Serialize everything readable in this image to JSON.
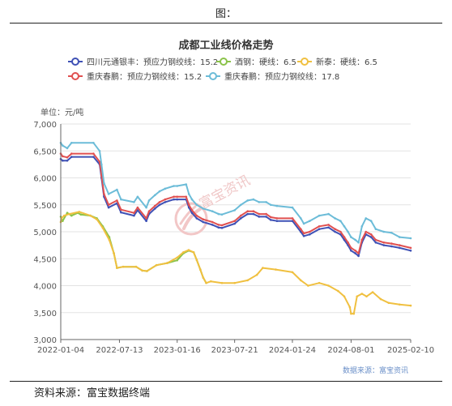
{
  "page": {
    "figure_label": "图：",
    "source_note": "资料来源：富宝数据终端"
  },
  "chart_data": {
    "type": "line",
    "title": "成都工业线价格走势",
    "unit_label": "单位：元/吨",
    "data_source": "数据来源：富宝资讯",
    "watermark": "富宝资讯",
    "ylim": [
      3000,
      7000
    ],
    "yticks": [
      3000,
      3500,
      4000,
      4500,
      5000,
      5500,
      6000,
      6500,
      7000
    ],
    "ytick_labels": [
      "3,000",
      "3,500",
      "4,000",
      "4,500",
      "5,000",
      "5,500",
      "6,000",
      "6,500",
      "7,000"
    ],
    "xlim": [
      "2022-01-04",
      "2025-02-10"
    ],
    "xticks": [
      "2022-01-04",
      "2022-07-13",
      "2023-01-16",
      "2023-07-21",
      "2024-01-24",
      "2024-08-01",
      "2025-02-10"
    ],
    "grid": "horizontal",
    "legend_position": "top",
    "series": [
      {
        "name": "四川元通银丰：预应力钢绞线：15.2",
        "color": "#3f51b5",
        "points": [
          [
            "2022-01-04",
            6350
          ],
          [
            "2022-01-10",
            6320
          ],
          [
            "2022-01-25",
            6320
          ],
          [
            "2022-02-08",
            6390
          ],
          [
            "2022-04-20",
            6390
          ],
          [
            "2022-05-10",
            6250
          ],
          [
            "2022-05-16",
            6000
          ],
          [
            "2022-05-24",
            5650
          ],
          [
            "2022-06-08",
            5450
          ],
          [
            "2022-07-05",
            5530
          ],
          [
            "2022-07-18",
            5360
          ],
          [
            "2022-08-29",
            5300
          ],
          [
            "2022-09-10",
            5400
          ],
          [
            "2022-10-08",
            5200
          ],
          [
            "2022-10-17",
            5330
          ],
          [
            "2022-11-05",
            5430
          ],
          [
            "2022-11-20",
            5500
          ],
          [
            "2022-12-08",
            5550
          ],
          [
            "2023-01-05",
            5600
          ],
          [
            "2023-01-16",
            5600
          ],
          [
            "2023-02-14",
            5600
          ],
          [
            "2023-02-23",
            5450
          ],
          [
            "2023-03-05",
            5350
          ],
          [
            "2023-03-20",
            5250
          ],
          [
            "2023-04-10",
            5180
          ],
          [
            "2023-05-10",
            5130
          ],
          [
            "2023-05-30",
            5080
          ],
          [
            "2023-06-10",
            5070
          ],
          [
            "2023-07-21",
            5150
          ],
          [
            "2023-08-10",
            5250
          ],
          [
            "2023-09-01",
            5330
          ],
          [
            "2023-09-20",
            5330
          ],
          [
            "2023-10-08",
            5280
          ],
          [
            "2023-10-31",
            5280
          ],
          [
            "2023-11-15",
            5220
          ],
          [
            "2023-12-05",
            5200
          ],
          [
            "2024-01-24",
            5200
          ],
          [
            "2024-02-20",
            5000
          ],
          [
            "2024-03-01",
            4920
          ],
          [
            "2024-03-20",
            4950
          ],
          [
            "2024-04-20",
            5050
          ],
          [
            "2024-05-20",
            5080
          ],
          [
            "2024-06-10",
            5000
          ],
          [
            "2024-06-28",
            4950
          ],
          [
            "2024-07-10",
            4850
          ],
          [
            "2024-07-22",
            4750
          ],
          [
            "2024-08-01",
            4650
          ],
          [
            "2024-08-15",
            4600
          ],
          [
            "2024-08-25",
            4550
          ],
          [
            "2024-09-05",
            4800
          ],
          [
            "2024-09-18",
            4950
          ],
          [
            "2024-10-05",
            4900
          ],
          [
            "2024-10-20",
            4800
          ],
          [
            "2024-11-15",
            4750
          ],
          [
            "2024-12-10",
            4730
          ],
          [
            "2025-01-05",
            4700
          ],
          [
            "2025-02-10",
            4650
          ]
        ]
      },
      {
        "name": "酒钢：硬线：6.5",
        "color": "#8bc34a",
        "points": [
          [
            "2022-01-04",
            5280
          ],
          [
            "2022-01-10",
            5200
          ],
          [
            "2022-01-25",
            5350
          ],
          [
            "2022-02-08",
            5300
          ],
          [
            "2022-02-28",
            5350
          ],
          [
            "2022-03-10",
            5320
          ],
          [
            "2022-04-10",
            5300
          ],
          [
            "2022-05-01",
            5250
          ],
          [
            "2022-05-20",
            5100
          ],
          [
            "2022-06-10",
            4900
          ],
          [
            "2022-06-25",
            4600
          ],
          [
            "2022-07-05",
            4330
          ],
          [
            "2022-07-25",
            4350
          ],
          [
            "2022-09-05",
            4350
          ],
          [
            "2022-09-25",
            4280
          ],
          [
            "2022-10-10",
            4270
          ],
          [
            "2022-11-10",
            4380
          ],
          [
            "2022-12-15",
            4420
          ],
          [
            "2023-01-16",
            4470
          ],
          [
            "2023-02-05",
            4600
          ],
          [
            "2023-02-22",
            4650
          ],
          [
            "2023-03-10",
            4620
          ],
          [
            "2023-03-20",
            4480
          ],
          [
            "2023-04-01",
            4300
          ],
          [
            "2023-04-10",
            4150
          ],
          [
            "2023-04-20",
            4050
          ]
        ]
      },
      {
        "name": "新泰：硬线：6.5",
        "color": "#f0c040",
        "points": [
          [
            "2022-01-04",
            5180
          ],
          [
            "2022-01-06",
            5250
          ],
          [
            "2022-01-15",
            5300
          ],
          [
            "2022-02-01",
            5330
          ],
          [
            "2022-03-05",
            5370
          ],
          [
            "2022-04-10",
            5300
          ],
          [
            "2022-05-01",
            5230
          ],
          [
            "2022-05-20",
            5070
          ],
          [
            "2022-06-10",
            4850
          ],
          [
            "2022-06-25",
            4600
          ],
          [
            "2022-07-05",
            4330
          ],
          [
            "2022-07-25",
            4350
          ],
          [
            "2022-09-05",
            4350
          ],
          [
            "2022-09-25",
            4280
          ],
          [
            "2022-10-10",
            4270
          ],
          [
            "2022-11-10",
            4380
          ],
          [
            "2022-12-15",
            4420
          ],
          [
            "2023-01-16",
            4520
          ],
          [
            "2023-02-05",
            4620
          ],
          [
            "2023-02-22",
            4660
          ],
          [
            "2023-03-10",
            4620
          ],
          [
            "2023-03-20",
            4480
          ],
          [
            "2023-04-01",
            4300
          ],
          [
            "2023-04-10",
            4150
          ],
          [
            "2023-04-20",
            4050
          ],
          [
            "2023-05-05",
            4080
          ],
          [
            "2023-06-10",
            4050
          ],
          [
            "2023-07-21",
            4050
          ],
          [
            "2023-09-01",
            4100
          ],
          [
            "2023-10-01",
            4200
          ],
          [
            "2023-10-20",
            4330
          ],
          [
            "2023-12-01",
            4300
          ],
          [
            "2024-01-24",
            4250
          ],
          [
            "2024-02-20",
            4100
          ],
          [
            "2024-03-15",
            4000
          ],
          [
            "2024-04-20",
            4050
          ],
          [
            "2024-05-20",
            4000
          ],
          [
            "2024-06-20",
            3900
          ],
          [
            "2024-07-10",
            3800
          ],
          [
            "2024-07-28",
            3600
          ],
          [
            "2024-08-01",
            3480
          ],
          [
            "2024-08-10",
            3480
          ],
          [
            "2024-08-20",
            3800
          ],
          [
            "2024-09-05",
            3850
          ],
          [
            "2024-09-20",
            3800
          ],
          [
            "2024-10-10",
            3880
          ],
          [
            "2024-11-05",
            3750
          ],
          [
            "2024-12-01",
            3680
          ],
          [
            "2025-01-05",
            3650
          ],
          [
            "2025-02-10",
            3630
          ]
        ]
      },
      {
        "name": "重庆春鹏：预应力钢绞线：15.2",
        "color": "#e05050",
        "points": [
          [
            "2022-01-04",
            6450
          ],
          [
            "2022-01-10",
            6400
          ],
          [
            "2022-01-25",
            6380
          ],
          [
            "2022-02-08",
            6450
          ],
          [
            "2022-04-20",
            6450
          ],
          [
            "2022-05-10",
            6300
          ],
          [
            "2022-05-16",
            6050
          ],
          [
            "2022-05-24",
            5700
          ],
          [
            "2022-06-08",
            5500
          ],
          [
            "2022-07-05",
            5580
          ],
          [
            "2022-07-18",
            5410
          ],
          [
            "2022-08-29",
            5350
          ],
          [
            "2022-09-10",
            5450
          ],
          [
            "2022-10-08",
            5250
          ],
          [
            "2022-10-17",
            5380
          ],
          [
            "2022-11-05",
            5480
          ],
          [
            "2022-11-20",
            5550
          ],
          [
            "2022-12-08",
            5600
          ],
          [
            "2023-01-05",
            5650
          ],
          [
            "2023-01-16",
            5650
          ],
          [
            "2023-02-14",
            5650
          ],
          [
            "2023-02-23",
            5500
          ],
          [
            "2023-03-05",
            5400
          ],
          [
            "2023-03-20",
            5300
          ],
          [
            "2023-04-10",
            5230
          ],
          [
            "2023-05-10",
            5180
          ],
          [
            "2023-05-30",
            5130
          ],
          [
            "2023-06-10",
            5120
          ],
          [
            "2023-07-21",
            5200
          ],
          [
            "2023-08-10",
            5300
          ],
          [
            "2023-09-01",
            5380
          ],
          [
            "2023-09-20",
            5380
          ],
          [
            "2023-10-08",
            5330
          ],
          [
            "2023-10-31",
            5330
          ],
          [
            "2023-11-15",
            5270
          ],
          [
            "2023-12-05",
            5250
          ],
          [
            "2024-01-24",
            5250
          ],
          [
            "2024-02-20",
            5050
          ],
          [
            "2024-03-01",
            4970
          ],
          [
            "2024-03-20",
            5000
          ],
          [
            "2024-04-20",
            5100
          ],
          [
            "2024-05-20",
            5130
          ],
          [
            "2024-06-10",
            5050
          ],
          [
            "2024-06-28",
            5000
          ],
          [
            "2024-07-10",
            4900
          ],
          [
            "2024-07-22",
            4800
          ],
          [
            "2024-08-01",
            4700
          ],
          [
            "2024-08-15",
            4650
          ],
          [
            "2024-08-25",
            4600
          ],
          [
            "2024-09-05",
            4850
          ],
          [
            "2024-09-18",
            5000
          ],
          [
            "2024-10-05",
            4950
          ],
          [
            "2024-10-20",
            4850
          ],
          [
            "2024-11-15",
            4800
          ],
          [
            "2024-12-10",
            4780
          ],
          [
            "2025-01-05",
            4750
          ],
          [
            "2025-02-10",
            4700
          ]
        ]
      },
      {
        "name": "重庆春鹏：预应力钢绞线：17.8",
        "color": "#6cbcd8",
        "points": [
          [
            "2022-01-04",
            6650
          ],
          [
            "2022-01-10",
            6600
          ],
          [
            "2022-01-25",
            6550
          ],
          [
            "2022-02-08",
            6650
          ],
          [
            "2022-04-20",
            6650
          ],
          [
            "2022-05-10",
            6500
          ],
          [
            "2022-05-16",
            6250
          ],
          [
            "2022-05-24",
            5900
          ],
          [
            "2022-06-08",
            5700
          ],
          [
            "2022-07-05",
            5780
          ],
          [
            "2022-07-18",
            5600
          ],
          [
            "2022-08-29",
            5550
          ],
          [
            "2022-09-10",
            5650
          ],
          [
            "2022-10-08",
            5450
          ],
          [
            "2022-10-17",
            5580
          ],
          [
            "2022-11-05",
            5680
          ],
          [
            "2022-11-20",
            5750
          ],
          [
            "2022-12-08",
            5800
          ],
          [
            "2023-01-05",
            5850
          ],
          [
            "2023-01-16",
            5850
          ],
          [
            "2023-02-14",
            5880
          ],
          [
            "2023-02-23",
            5700
          ],
          [
            "2023-03-05",
            5600
          ],
          [
            "2023-03-20",
            5500
          ],
          [
            "2023-04-10",
            5430
          ],
          [
            "2023-05-10",
            5380
          ],
          [
            "2023-05-30",
            5330
          ],
          [
            "2023-06-10",
            5320
          ],
          [
            "2023-07-21",
            5400
          ],
          [
            "2023-08-10",
            5500
          ],
          [
            "2023-09-01",
            5580
          ],
          [
            "2023-09-20",
            5600
          ],
          [
            "2023-10-08",
            5550
          ],
          [
            "2023-10-31",
            5550
          ],
          [
            "2023-11-15",
            5500
          ],
          [
            "2023-12-05",
            5480
          ],
          [
            "2024-01-24",
            5450
          ],
          [
            "2024-02-20",
            5250
          ],
          [
            "2024-03-01",
            5150
          ],
          [
            "2024-03-20",
            5200
          ],
          [
            "2024-04-20",
            5300
          ],
          [
            "2024-05-20",
            5330
          ],
          [
            "2024-06-10",
            5250
          ],
          [
            "2024-06-28",
            5200
          ],
          [
            "2024-07-10",
            5100
          ],
          [
            "2024-07-22",
            5000
          ],
          [
            "2024-08-01",
            4900
          ],
          [
            "2024-08-15",
            4850
          ],
          [
            "2024-08-25",
            4800
          ],
          [
            "2024-09-05",
            5100
          ],
          [
            "2024-09-18",
            5250
          ],
          [
            "2024-10-05",
            5200
          ],
          [
            "2024-10-20",
            5050
          ],
          [
            "2024-11-15",
            5000
          ],
          [
            "2024-12-10",
            4980
          ],
          [
            "2025-01-05",
            4900
          ],
          [
            "2025-02-10",
            4880
          ]
        ]
      }
    ]
  }
}
